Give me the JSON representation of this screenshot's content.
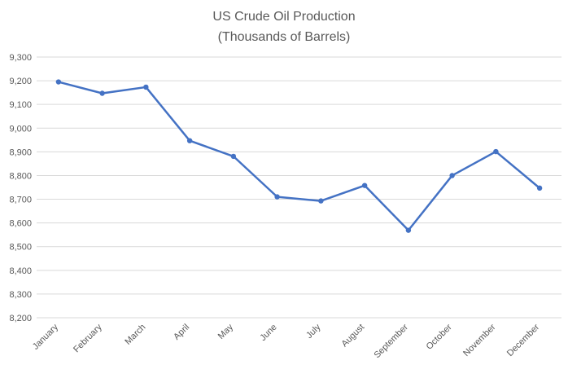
{
  "chart_data": {
    "type": "line",
    "title_lines": [
      "US Crude Oil Production",
      "(Thousands of Barrels)"
    ],
    "categories": [
      "January",
      "February",
      "March",
      "April",
      "May",
      "June",
      "July",
      "August",
      "September",
      "October",
      "November",
      "December"
    ],
    "series": [
      {
        "values": [
          9195,
          9147,
          9173,
          8947,
          8881,
          8710,
          8693,
          8758,
          8569,
          8800,
          8901,
          8747
        ],
        "color": "#4472C4"
      }
    ],
    "ylim": [
      8200,
      9300
    ],
    "yticks": [
      8200,
      8300,
      8400,
      8500,
      8600,
      8700,
      8800,
      8900,
      9000,
      9100,
      9200,
      9300
    ],
    "ytick_labels": [
      "8,200",
      "8,300",
      "8,400",
      "8,500",
      "8,600",
      "8,700",
      "8,800",
      "8,900",
      "9,000",
      "9,100",
      "9,200",
      "9,300"
    ],
    "grid": true,
    "legend": "none"
  }
}
